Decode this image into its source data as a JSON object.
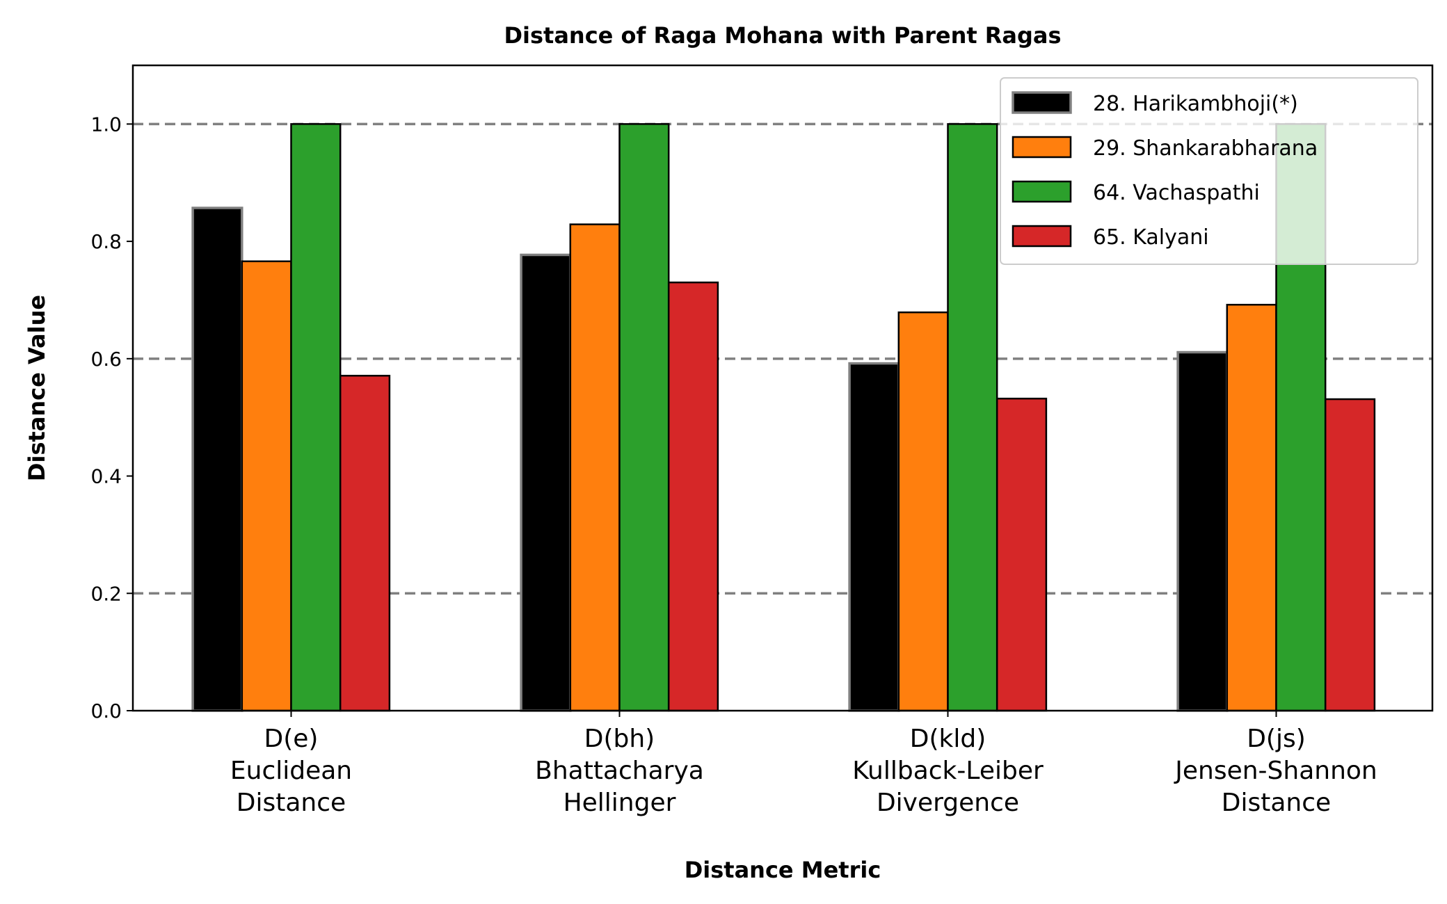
{
  "chart_data": {
    "type": "bar",
    "title": "Distance of Raga Mohana with Parent Ragas",
    "xlabel": "Distance Metric",
    "ylabel": "Distance Value",
    "ylim": [
      0,
      1.1
    ],
    "yticks": [
      "0.0",
      "0.2",
      "0.4",
      "0.6",
      "0.8",
      "1.0"
    ],
    "reference_lines": [
      0.2,
      0.6,
      1.0
    ],
    "legend_position": "top-right",
    "categories": [
      [
        "D(e)",
        "Euclidean",
        "Distance"
      ],
      [
        "D(bh)",
        "Bhattacharya",
        "Hellinger"
      ],
      [
        "D(kld)",
        "Kullback-Leiber",
        "Divergence"
      ],
      [
        "D(js)",
        "Jensen-Shannon",
        "Distance"
      ]
    ],
    "series": [
      {
        "name": "28. Harikambhoji(*)",
        "color": "#000000",
        "values": [
          0.857,
          0.777,
          0.592,
          0.611
        ]
      },
      {
        "name": "29. Shankarabharana",
        "color": "#ff7f0e",
        "values": [
          0.766,
          0.829,
          0.679,
          0.692
        ]
      },
      {
        "name": "64. Vachaspathi",
        "color": "#2ca02c",
        "values": [
          1.0,
          1.0,
          1.0,
          1.0
        ]
      },
      {
        "name": "65. Kalyani",
        "color": "#d62728",
        "values": [
          0.571,
          0.73,
          0.532,
          0.531
        ]
      }
    ]
  }
}
